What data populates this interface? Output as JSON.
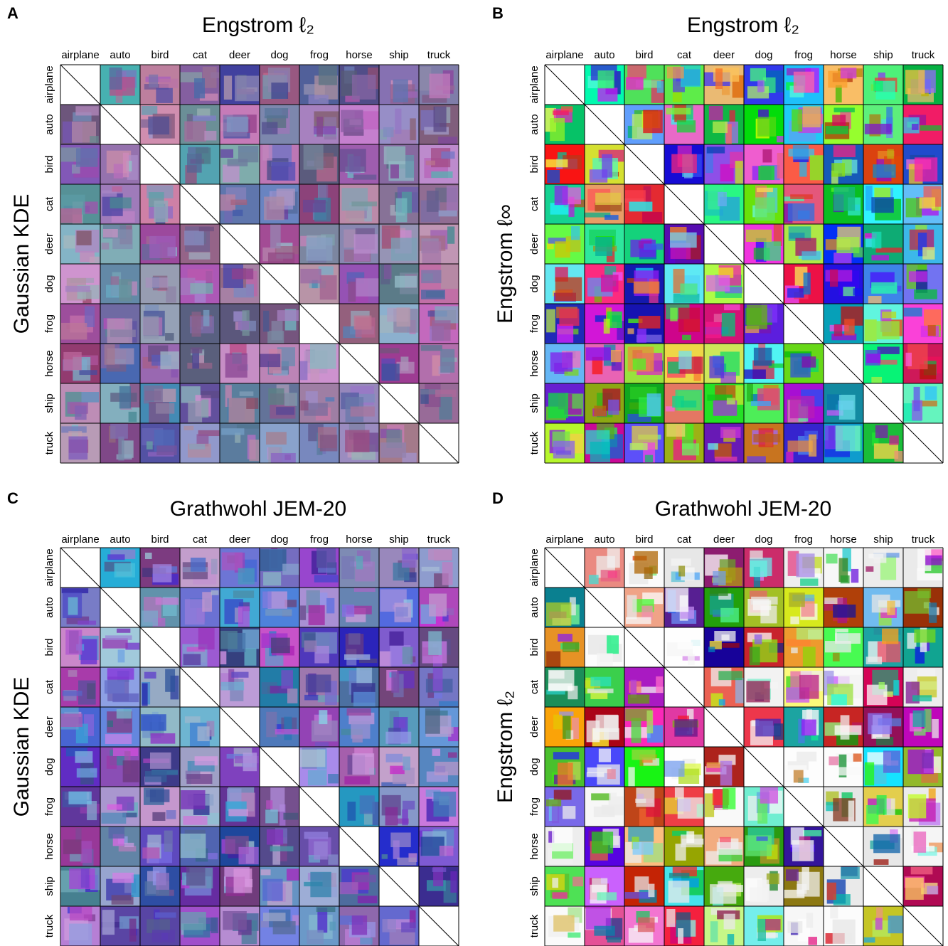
{
  "classes": [
    "airplane",
    "auto",
    "bird",
    "cat",
    "deer",
    "dog",
    "frog",
    "horse",
    "ship",
    "truck"
  ],
  "panels": [
    {
      "letter": "A",
      "title": "Engstrom ℓ₂",
      "row_title": "Gaussian KDE"
    },
    {
      "letter": "B",
      "title": "Engstrom ℓ₂",
      "row_title": "Engstrom ℓ∞"
    },
    {
      "letter": "C",
      "title": "Grathwohl JEM-20",
      "row_title": "Gaussian KDE"
    },
    {
      "letter": "D",
      "title": "Grathwohl JEM-20",
      "row_title": "Engstrom ℓ₂"
    }
  ]
}
